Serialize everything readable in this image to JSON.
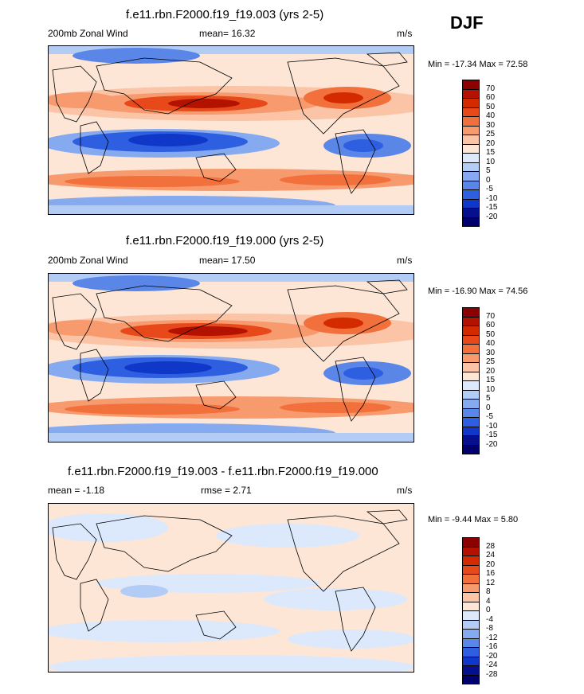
{
  "season": "DJF",
  "panels": [
    {
      "title": "f.e11.rbn.F2000.f19_f19.003 (yrs 2-5)",
      "left_label": "200mb Zonal Wind",
      "center_label": "mean=  16.32",
      "right_label": "m/s",
      "minmax": "Min = -17.34 Max =  72.58",
      "levels": [
        "70",
        "60",
        "50",
        "40",
        "30",
        "25",
        "20",
        "15",
        "10",
        "5",
        "0",
        "-5",
        "-10",
        "-15",
        "-20"
      ]
    },
    {
      "title": "f.e11.rbn.F2000.f19_f19.000 (yrs 2-5)",
      "left_label": "200mb Zonal Wind",
      "center_label": "mean=  17.50",
      "right_label": "m/s",
      "minmax": "Min = -16.90 Max =  74.56",
      "levels": [
        "70",
        "60",
        "50",
        "40",
        "30",
        "25",
        "20",
        "15",
        "10",
        "5",
        "0",
        "-5",
        "-10",
        "-15",
        "-20"
      ]
    },
    {
      "title": "f.e11.rbn.F2000.f19_f19.003 - f.e11.rbn.F2000.f19_f19.000",
      "left_label": "mean =  -1.18",
      "center_label": "rmse =   2.71",
      "right_label": "m/s",
      "minmax": "Min =  -9.44 Max =   5.80",
      "levels": [
        "28",
        "24",
        "20",
        "16",
        "12",
        "8",
        "4",
        "0",
        "-4",
        "-8",
        "-12",
        "-16",
        "-20",
        "-24",
        "-28"
      ]
    }
  ],
  "colors": {
    "colorbar": [
      "#8b0000",
      "#b31200",
      "#d42a00",
      "#e8491a",
      "#f2703c",
      "#f79a6e",
      "#fbc4a6",
      "#fde6d6",
      "#dce8fb",
      "#b3ccf5",
      "#86aaef",
      "#5a86e8",
      "#2e5fe0",
      "#0f38c8",
      "#06108e",
      "#00006e"
    ]
  }
}
